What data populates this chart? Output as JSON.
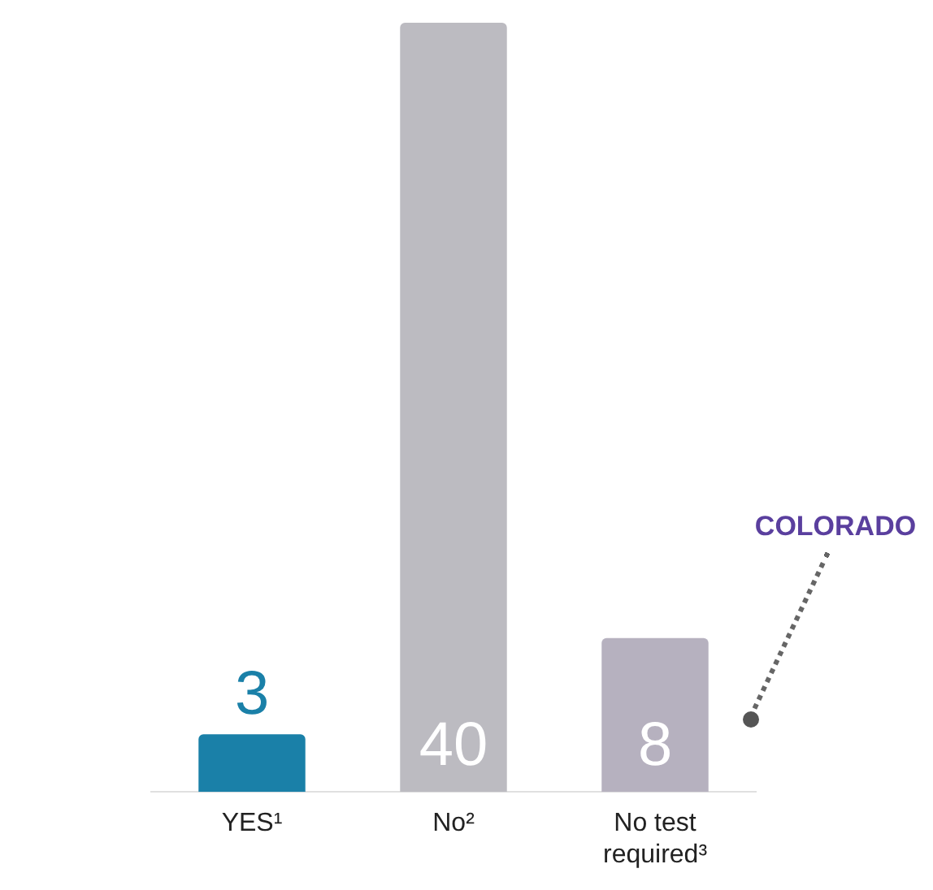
{
  "chart_data": {
    "type": "bar",
    "categories": [
      "YES¹",
      "No²",
      "No test required³"
    ],
    "values": [
      3,
      40,
      8
    ],
    "colors": [
      "#1a80a8",
      "#bcbbc1",
      "#b6b1bf"
    ],
    "data_labels": true,
    "annotations": [
      "COLORADO"
    ]
  }
}
